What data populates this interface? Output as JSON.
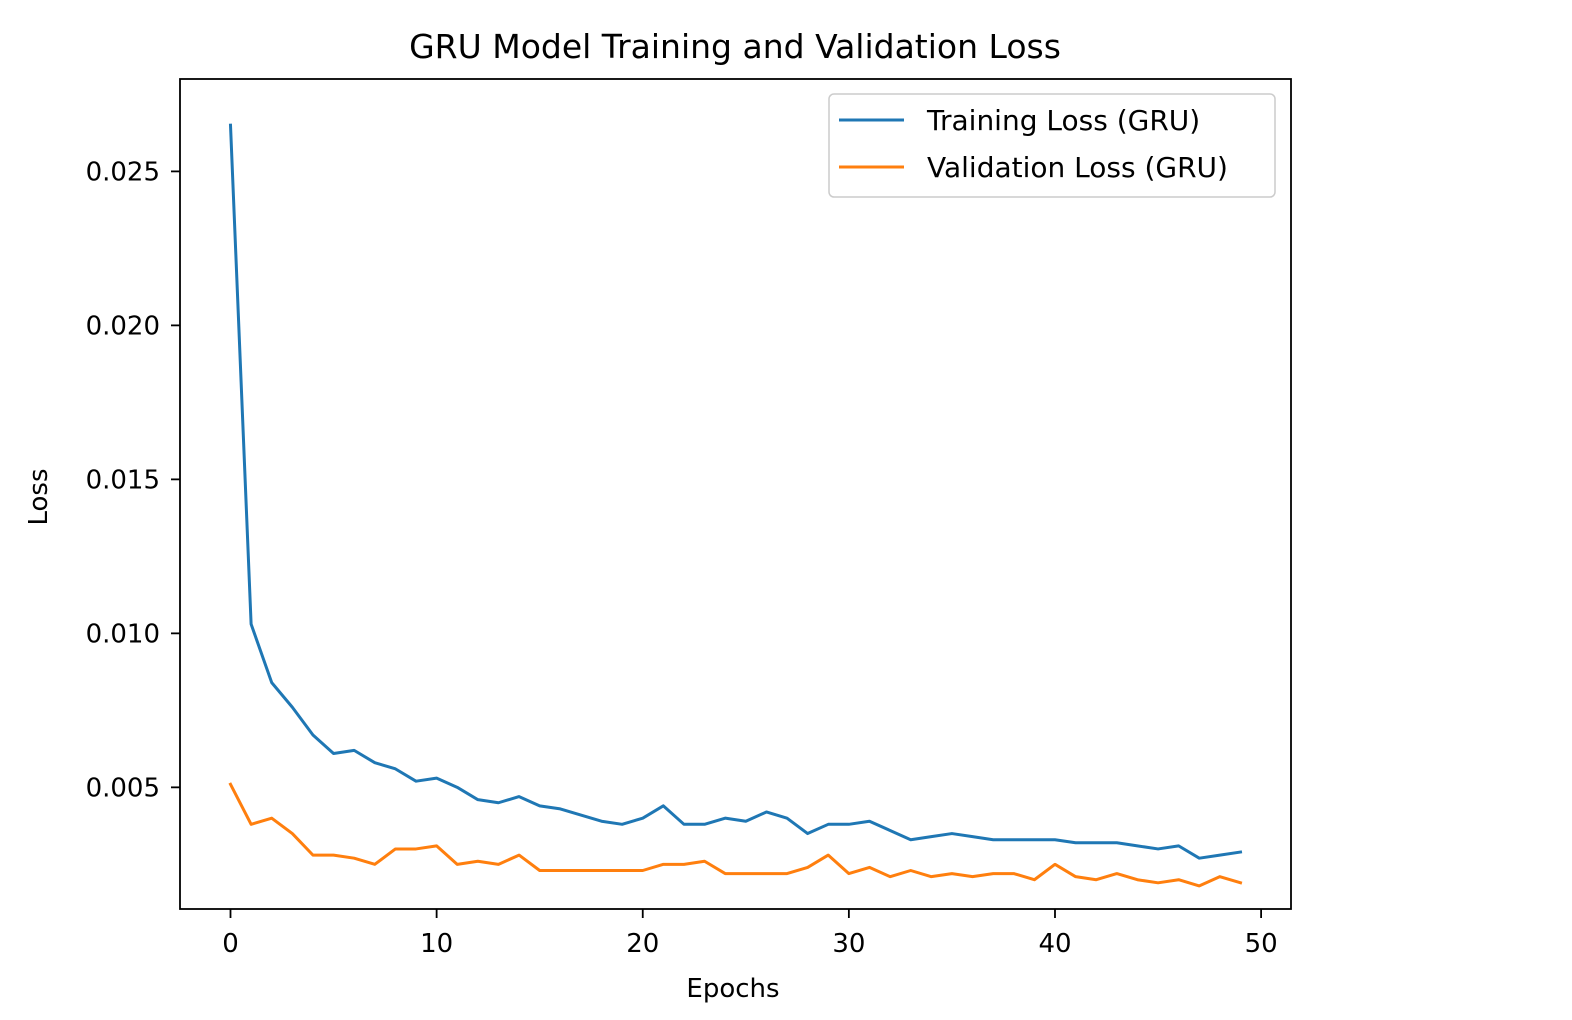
{
  "chart_data": {
    "type": "line",
    "title": "GRU Model Training and Validation Loss",
    "xlabel": "Epochs",
    "ylabel": "Loss",
    "xlim": [
      -2.45,
      51.45
    ],
    "ylim": [
      0.00105,
      0.028
    ],
    "xticks": [
      0,
      10,
      20,
      30,
      40,
      50
    ],
    "xtick_labels": [
      "0",
      "10",
      "20",
      "30",
      "40",
      "50"
    ],
    "yticks": [
      0.005,
      0.01,
      0.015,
      0.02,
      0.025
    ],
    "ytick_labels": [
      "0.005",
      "0.010",
      "0.015",
      "0.020",
      "0.025"
    ],
    "grid": false,
    "legend_position": "top-right",
    "x": [
      0,
      1,
      2,
      3,
      4,
      5,
      6,
      7,
      8,
      9,
      10,
      11,
      12,
      13,
      14,
      15,
      16,
      17,
      18,
      19,
      20,
      21,
      22,
      23,
      24,
      25,
      26,
      27,
      28,
      29,
      30,
      31,
      32,
      33,
      34,
      35,
      36,
      37,
      38,
      39,
      40,
      41,
      42,
      43,
      44,
      45,
      46,
      47,
      48,
      49
    ],
    "series": [
      {
        "name": "Training Loss (GRU)",
        "color": "#1f77b4",
        "values": [
          0.0265,
          0.0103,
          0.0084,
          0.0076,
          0.0067,
          0.0061,
          0.0062,
          0.0058,
          0.0056,
          0.0052,
          0.0053,
          0.005,
          0.0046,
          0.0045,
          0.0047,
          0.0044,
          0.0043,
          0.0041,
          0.0039,
          0.0038,
          0.004,
          0.0044,
          0.0038,
          0.0038,
          0.004,
          0.0039,
          0.0042,
          0.004,
          0.0035,
          0.0038,
          0.0038,
          0.0039,
          0.0036,
          0.0033,
          0.0034,
          0.0035,
          0.0034,
          0.0033,
          0.0033,
          0.0033,
          0.0033,
          0.0032,
          0.0032,
          0.0032,
          0.0031,
          0.003,
          0.0031,
          0.0027,
          0.0028,
          0.0029
        ]
      },
      {
        "name": "Validation Loss (GRU)",
        "color": "#ff7f0e",
        "values": [
          0.0051,
          0.0038,
          0.004,
          0.0035,
          0.0028,
          0.0028,
          0.0027,
          0.0025,
          0.003,
          0.003,
          0.0031,
          0.0025,
          0.0026,
          0.0025,
          0.0028,
          0.0023,
          0.0023,
          0.0023,
          0.0023,
          0.0023,
          0.0023,
          0.0025,
          0.0025,
          0.0026,
          0.0022,
          0.0022,
          0.0022,
          0.0022,
          0.0024,
          0.0028,
          0.0022,
          0.0024,
          0.0021,
          0.0023,
          0.0021,
          0.0022,
          0.0021,
          0.0022,
          0.0022,
          0.002,
          0.0025,
          0.0021,
          0.002,
          0.0022,
          0.002,
          0.0019,
          0.002,
          0.0018,
          0.0021,
          0.0019
        ]
      }
    ]
  }
}
